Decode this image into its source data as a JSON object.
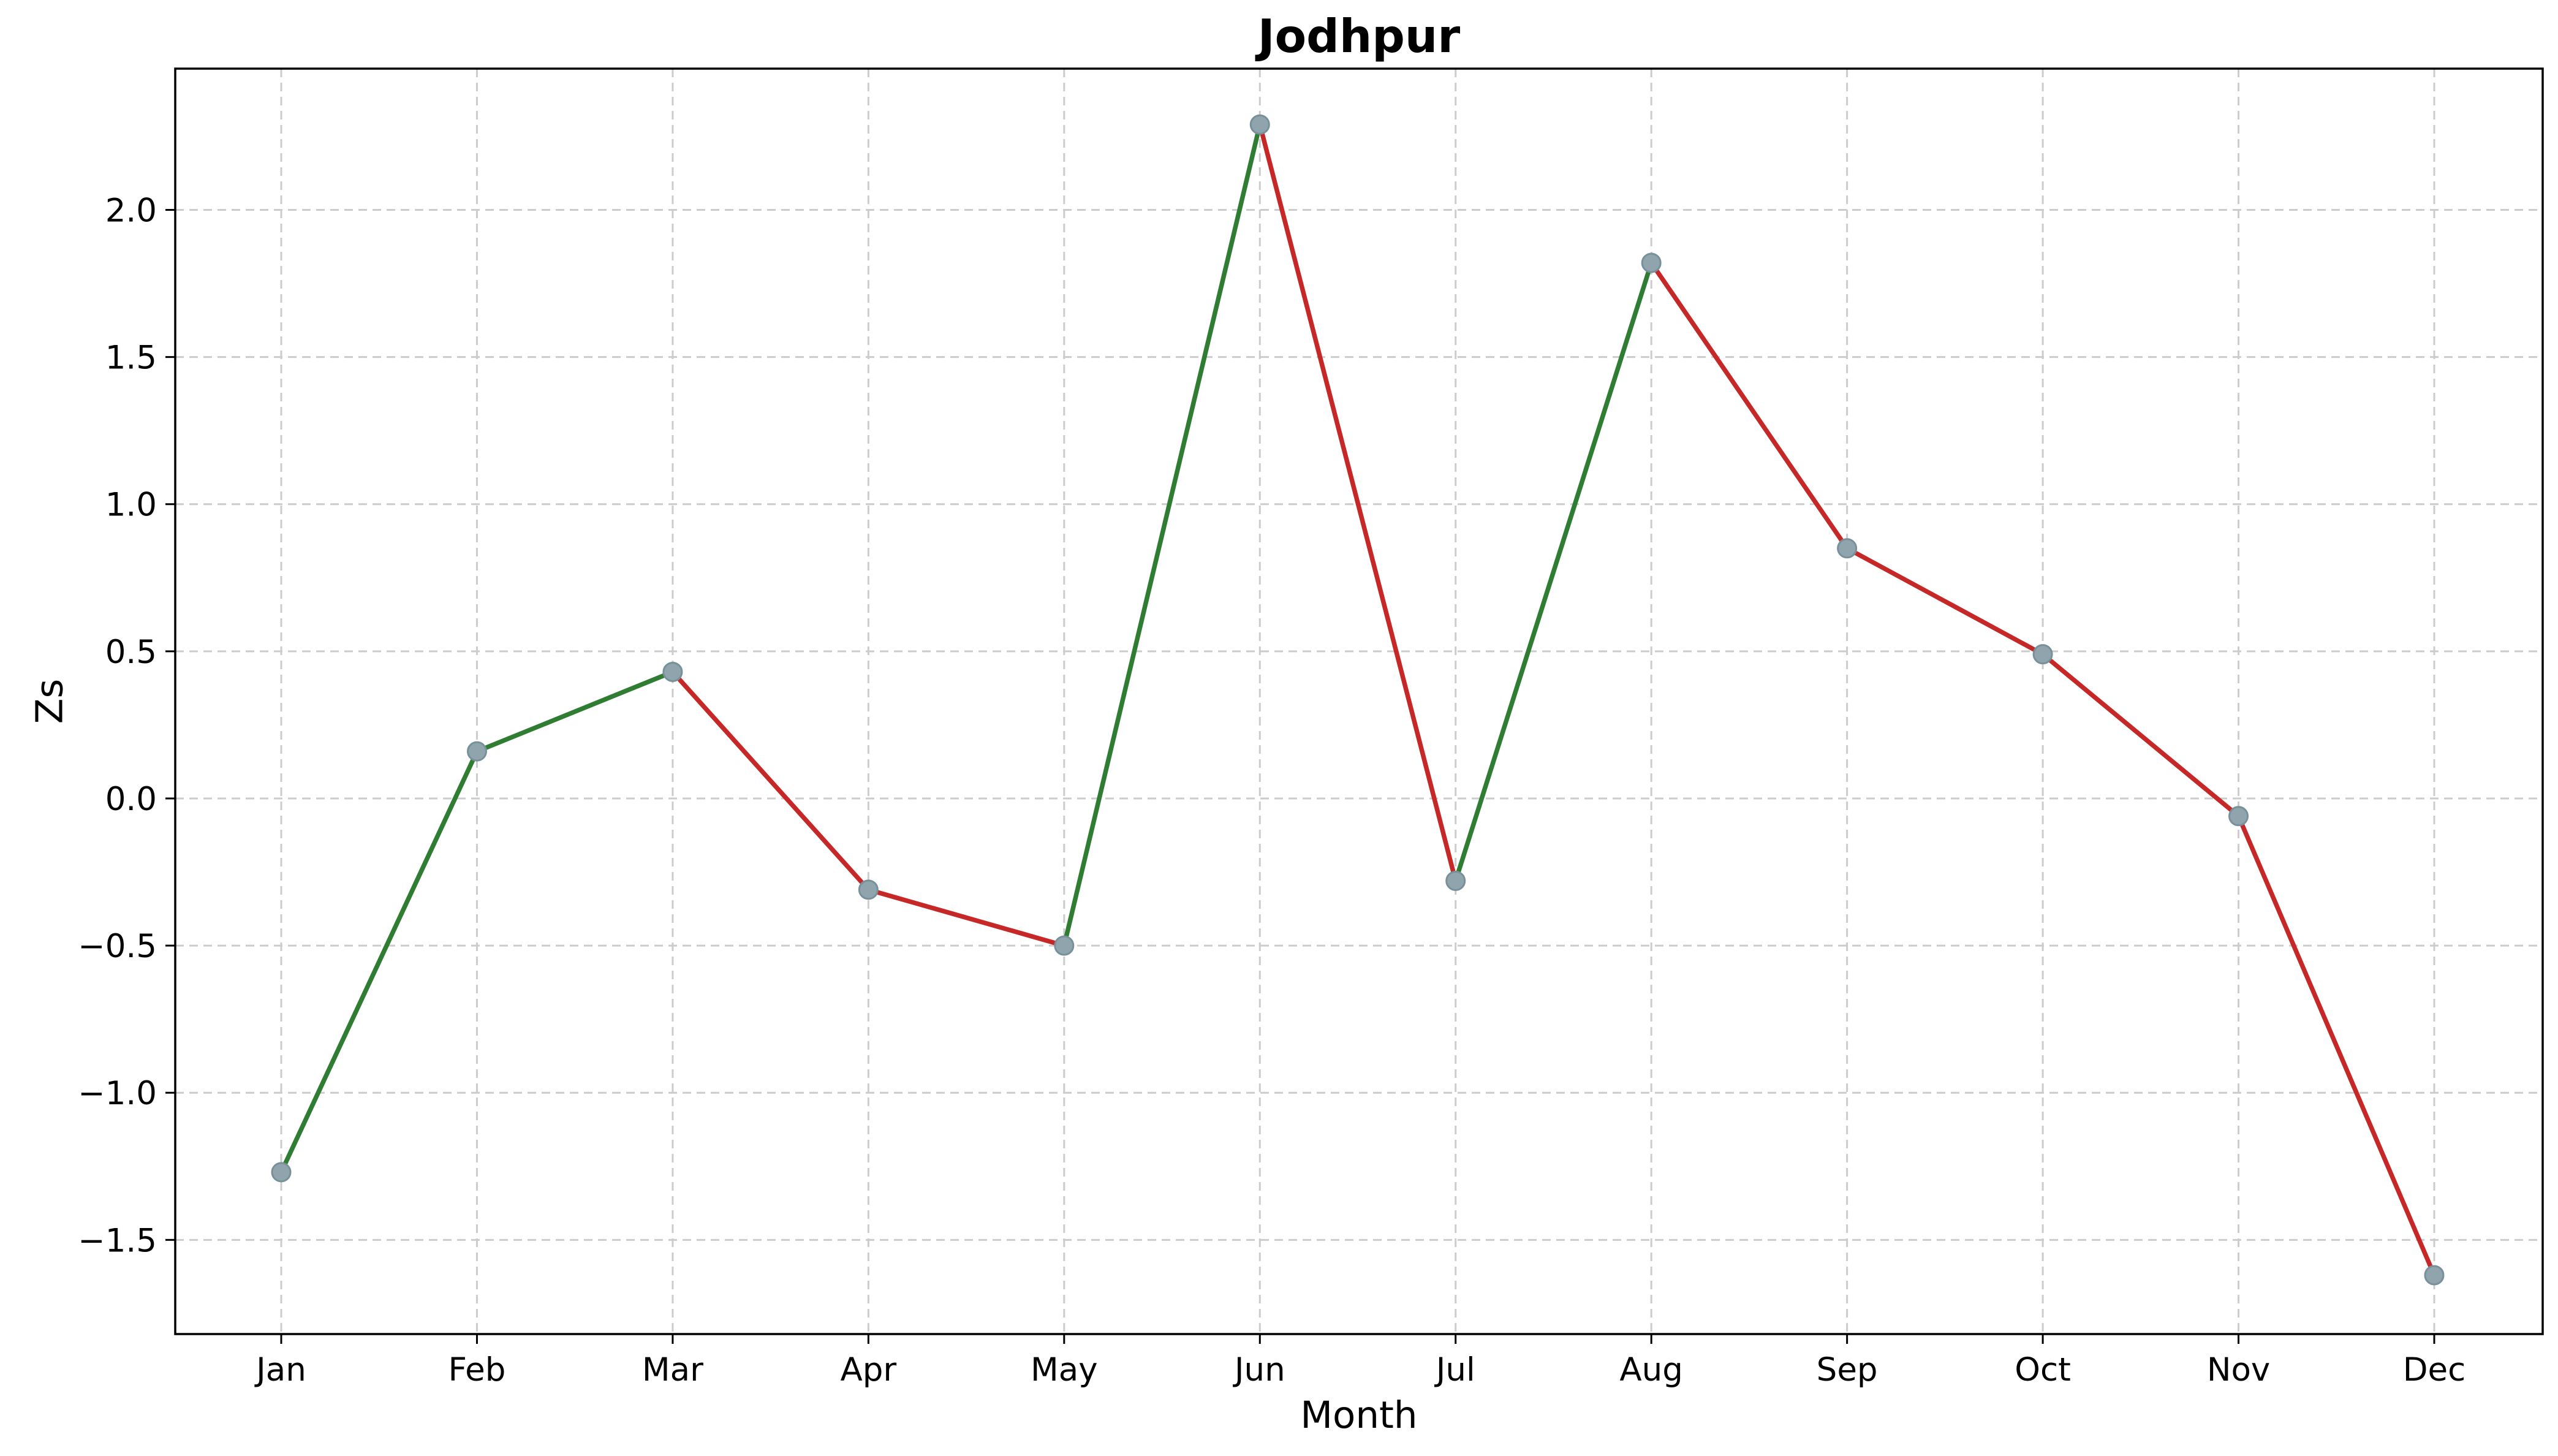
{
  "chart_data": {
    "type": "line",
    "title": "Jodhpur",
    "xlabel": "Month",
    "ylabel": "Zs",
    "categories": [
      "Jan",
      "Feb",
      "Mar",
      "Apr",
      "May",
      "Jun",
      "Jul",
      "Aug",
      "Sep",
      "Oct",
      "Nov",
      "Dec"
    ],
    "values": [
      -1.27,
      0.16,
      0.43,
      -0.31,
      -0.5,
      2.29,
      -0.28,
      1.82,
      0.85,
      0.49,
      -0.06,
      -1.62
    ],
    "ylim": [
      -1.82,
      2.48
    ],
    "yticks": [
      -1.5,
      -1.0,
      -0.5,
      0.0,
      0.5,
      1.0,
      1.5,
      2.0
    ],
    "ytick_labels": [
      "−1.5",
      "−1.0",
      "−0.5",
      "0.0",
      "0.5",
      "1.0",
      "1.5",
      "2.0"
    ],
    "grid": true,
    "colors": {
      "increase": "#2e7d32",
      "decrease": "#c62828",
      "marker": "#90a4ae"
    }
  }
}
